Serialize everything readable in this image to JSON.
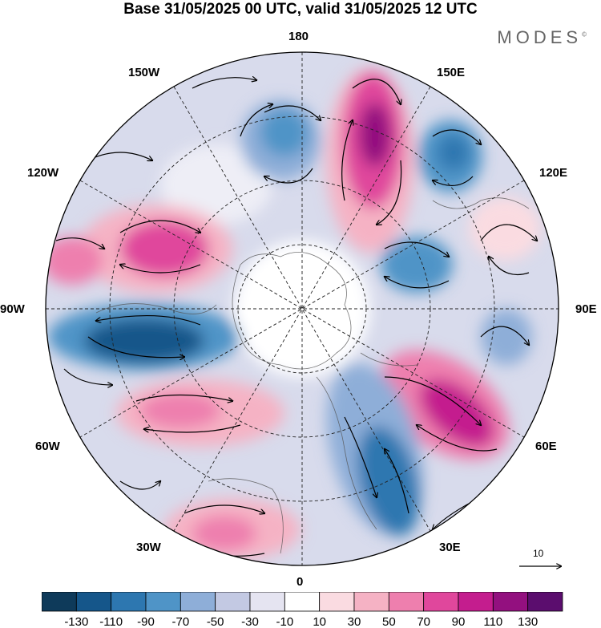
{
  "title": "Base 31/05/2025 00 UTC, valid 31/05/2025 12 UTC",
  "brand": "MODES",
  "brand_mark": "©",
  "longitude_labels": {
    "top": "180",
    "bottom": "0",
    "left": "90W",
    "right": "90E",
    "l150w": "150W",
    "l120w": "120W",
    "l60w": "60W",
    "l30w": "30W",
    "l150e": "150E",
    "l120e": "120E",
    "l60e": "60E",
    "l30e": "30E"
  },
  "reference_vector": {
    "label": "10"
  },
  "colorbar": {
    "ticks": [
      "-130",
      "-110",
      "-90",
      "-70",
      "-50",
      "-30",
      "-10",
      "10",
      "30",
      "50",
      "70",
      "90",
      "110",
      "130"
    ],
    "colors": [
      "#0e3a5a",
      "#15568a",
      "#2d77b0",
      "#4f94c7",
      "#8eaed8",
      "#c3c9e3",
      "#e5e4f1",
      "#ffffff",
      "#fadbe1",
      "#f5b2c4",
      "#ee7fae",
      "#e0479c",
      "#c41d8e",
      "#93107f",
      "#5b0d6e"
    ]
  },
  "anomaly_centers": [
    {
      "sign": "positive",
      "color": "#93107f"
    },
    {
      "sign": "positive",
      "color": "#c41d8e"
    },
    {
      "sign": "positive",
      "color": "#e0479c"
    },
    {
      "sign": "negative",
      "color": "#15568a"
    },
    {
      "sign": "negative",
      "color": "#2d77b0"
    }
  ]
}
